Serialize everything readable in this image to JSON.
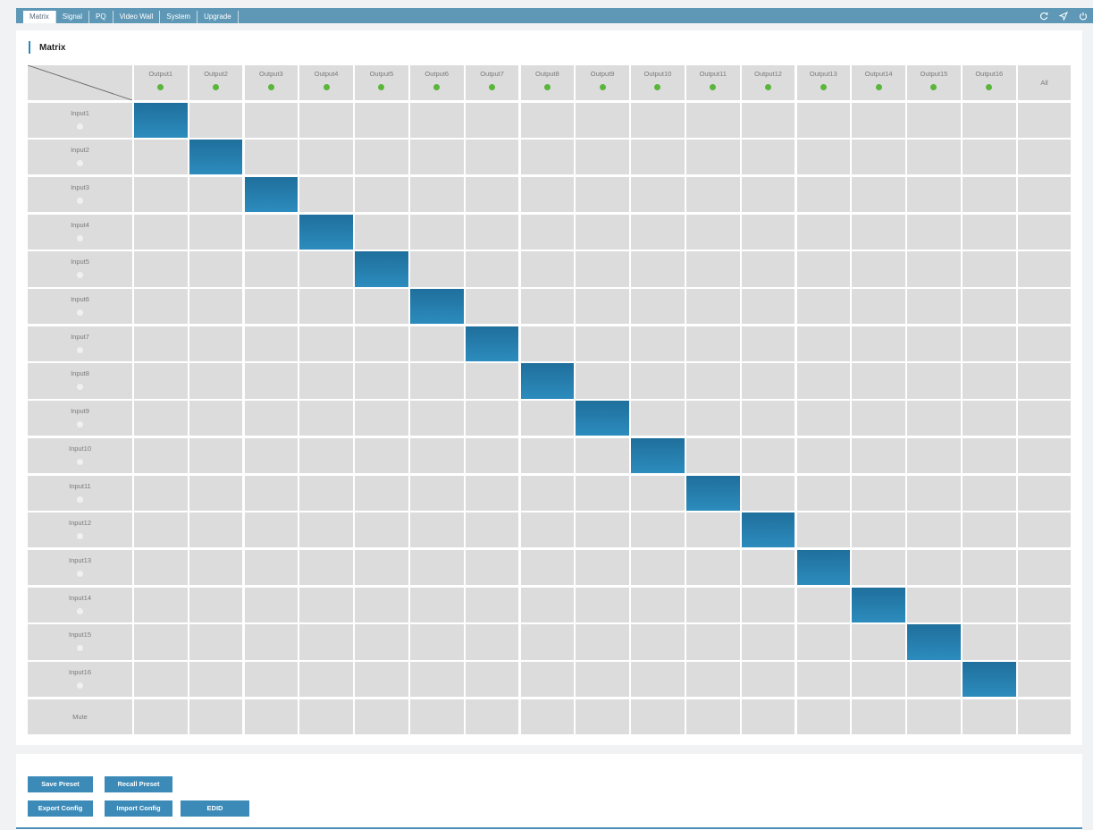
{
  "tabs": [
    {
      "label": "Matrix",
      "active": true
    },
    {
      "label": "Signal",
      "active": false
    },
    {
      "label": "PQ",
      "active": false
    },
    {
      "label": "Video Wall",
      "active": false
    },
    {
      "label": "System",
      "active": false
    },
    {
      "label": "Upgrade",
      "active": false
    }
  ],
  "top_icons": [
    "refresh-icon",
    "send-icon",
    "power-icon"
  ],
  "section": {
    "title": "Matrix"
  },
  "outputs": [
    "Output1",
    "Output2",
    "Output3",
    "Output4",
    "Output5",
    "Output6",
    "Output7",
    "Output8",
    "Output9",
    "Output10",
    "Output11",
    "Output12",
    "Output13",
    "Output14",
    "Output15",
    "Output16"
  ],
  "output_status": [
    "green",
    "green",
    "green",
    "green",
    "green",
    "green",
    "green",
    "green",
    "green",
    "green",
    "green",
    "green",
    "green",
    "green",
    "green",
    "green"
  ],
  "all_label": "All",
  "inputs": [
    "Input1",
    "Input2",
    "Input3",
    "Input4",
    "Input5",
    "Input6",
    "Input7",
    "Input8",
    "Input9",
    "Input10",
    "Input11",
    "Input12",
    "Input13",
    "Input14",
    "Input15",
    "Input16"
  ],
  "input_status": [
    "white",
    "white",
    "white",
    "white",
    "white",
    "white",
    "white",
    "white",
    "white",
    "white",
    "white",
    "white",
    "white",
    "white",
    "white",
    "white"
  ],
  "mute_label": "Mute",
  "routing": [
    1,
    2,
    3,
    4,
    5,
    6,
    7,
    8,
    9,
    10,
    11,
    12,
    13,
    14,
    15,
    16
  ],
  "colors": {
    "accent": "#3b8ab8",
    "tab_bar": "#5e98b6",
    "active_cell": "#2c8cbd",
    "status_green": "#5ab53b"
  },
  "buttons": {
    "save_preset": "Save Preset",
    "recall_preset": "Recall Preset",
    "export_config": "Export Config",
    "import_config": "Import Config",
    "edid": "EDID"
  }
}
